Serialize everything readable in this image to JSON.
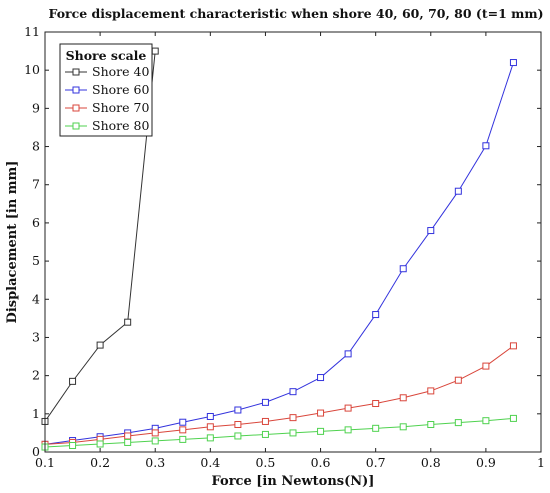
{
  "chart_data": {
    "type": "line",
    "title": "Force displacement characteristic when shore 40, 60, 70, 80 (t=1 mm)",
    "xlabel": "Force [in Newtons(N)]",
    "ylabel": "Displacement [in mm]",
    "xlim": [
      0.1,
      1
    ],
    "ylim": [
      0,
      11
    ],
    "xticks": [
      "0.1",
      "0.2",
      "0.3",
      "0.4",
      "0.5",
      "0.6",
      "0.7",
      "0.8",
      "0.9",
      "1"
    ],
    "yticks": [
      "0",
      "1",
      "2",
      "3",
      "4",
      "5",
      "6",
      "7",
      "8",
      "9",
      "10",
      "11"
    ],
    "grid": false,
    "legend": {
      "title": "Shore scale",
      "position": "top-left"
    },
    "series": [
      {
        "name": "Shore 40",
        "color": "#333333",
        "marker": "square",
        "x": [
          0.1,
          0.15,
          0.2,
          0.25,
          0.3
        ],
        "y": [
          0.8,
          1.85,
          2.8,
          3.4,
          10.5
        ]
      },
      {
        "name": "Shore 60",
        "color": "#3333dd",
        "marker": "square",
        "x": [
          0.1,
          0.15,
          0.2,
          0.25,
          0.3,
          0.35,
          0.4,
          0.45,
          0.5,
          0.55,
          0.6,
          0.65,
          0.7,
          0.75,
          0.8,
          0.85,
          0.9,
          0.95
        ],
        "y": [
          0.2,
          0.3,
          0.4,
          0.5,
          0.62,
          0.78,
          0.93,
          1.1,
          1.3,
          1.58,
          1.95,
          2.57,
          3.6,
          4.8,
          5.8,
          6.83,
          8.02,
          10.2
        ]
      },
      {
        "name": "Shore 70",
        "color": "#d9463b",
        "marker": "square",
        "x": [
          0.1,
          0.15,
          0.2,
          0.25,
          0.3,
          0.35,
          0.4,
          0.45,
          0.5,
          0.55,
          0.6,
          0.65,
          0.7,
          0.75,
          0.8,
          0.85,
          0.9,
          0.95
        ],
        "y": [
          0.2,
          0.25,
          0.33,
          0.42,
          0.5,
          0.58,
          0.66,
          0.72,
          0.8,
          0.9,
          1.02,
          1.15,
          1.27,
          1.42,
          1.6,
          1.88,
          2.25,
          2.78
        ]
      },
      {
        "name": "Shore 80",
        "color": "#4fd24f",
        "marker": "square",
        "x": [
          0.1,
          0.15,
          0.2,
          0.25,
          0.3,
          0.35,
          0.4,
          0.45,
          0.5,
          0.55,
          0.6,
          0.65,
          0.7,
          0.75,
          0.8,
          0.85,
          0.9,
          0.95
        ],
        "y": [
          0.13,
          0.17,
          0.21,
          0.25,
          0.29,
          0.33,
          0.37,
          0.42,
          0.46,
          0.5,
          0.54,
          0.58,
          0.62,
          0.66,
          0.72,
          0.77,
          0.82,
          0.88
        ]
      }
    ]
  }
}
